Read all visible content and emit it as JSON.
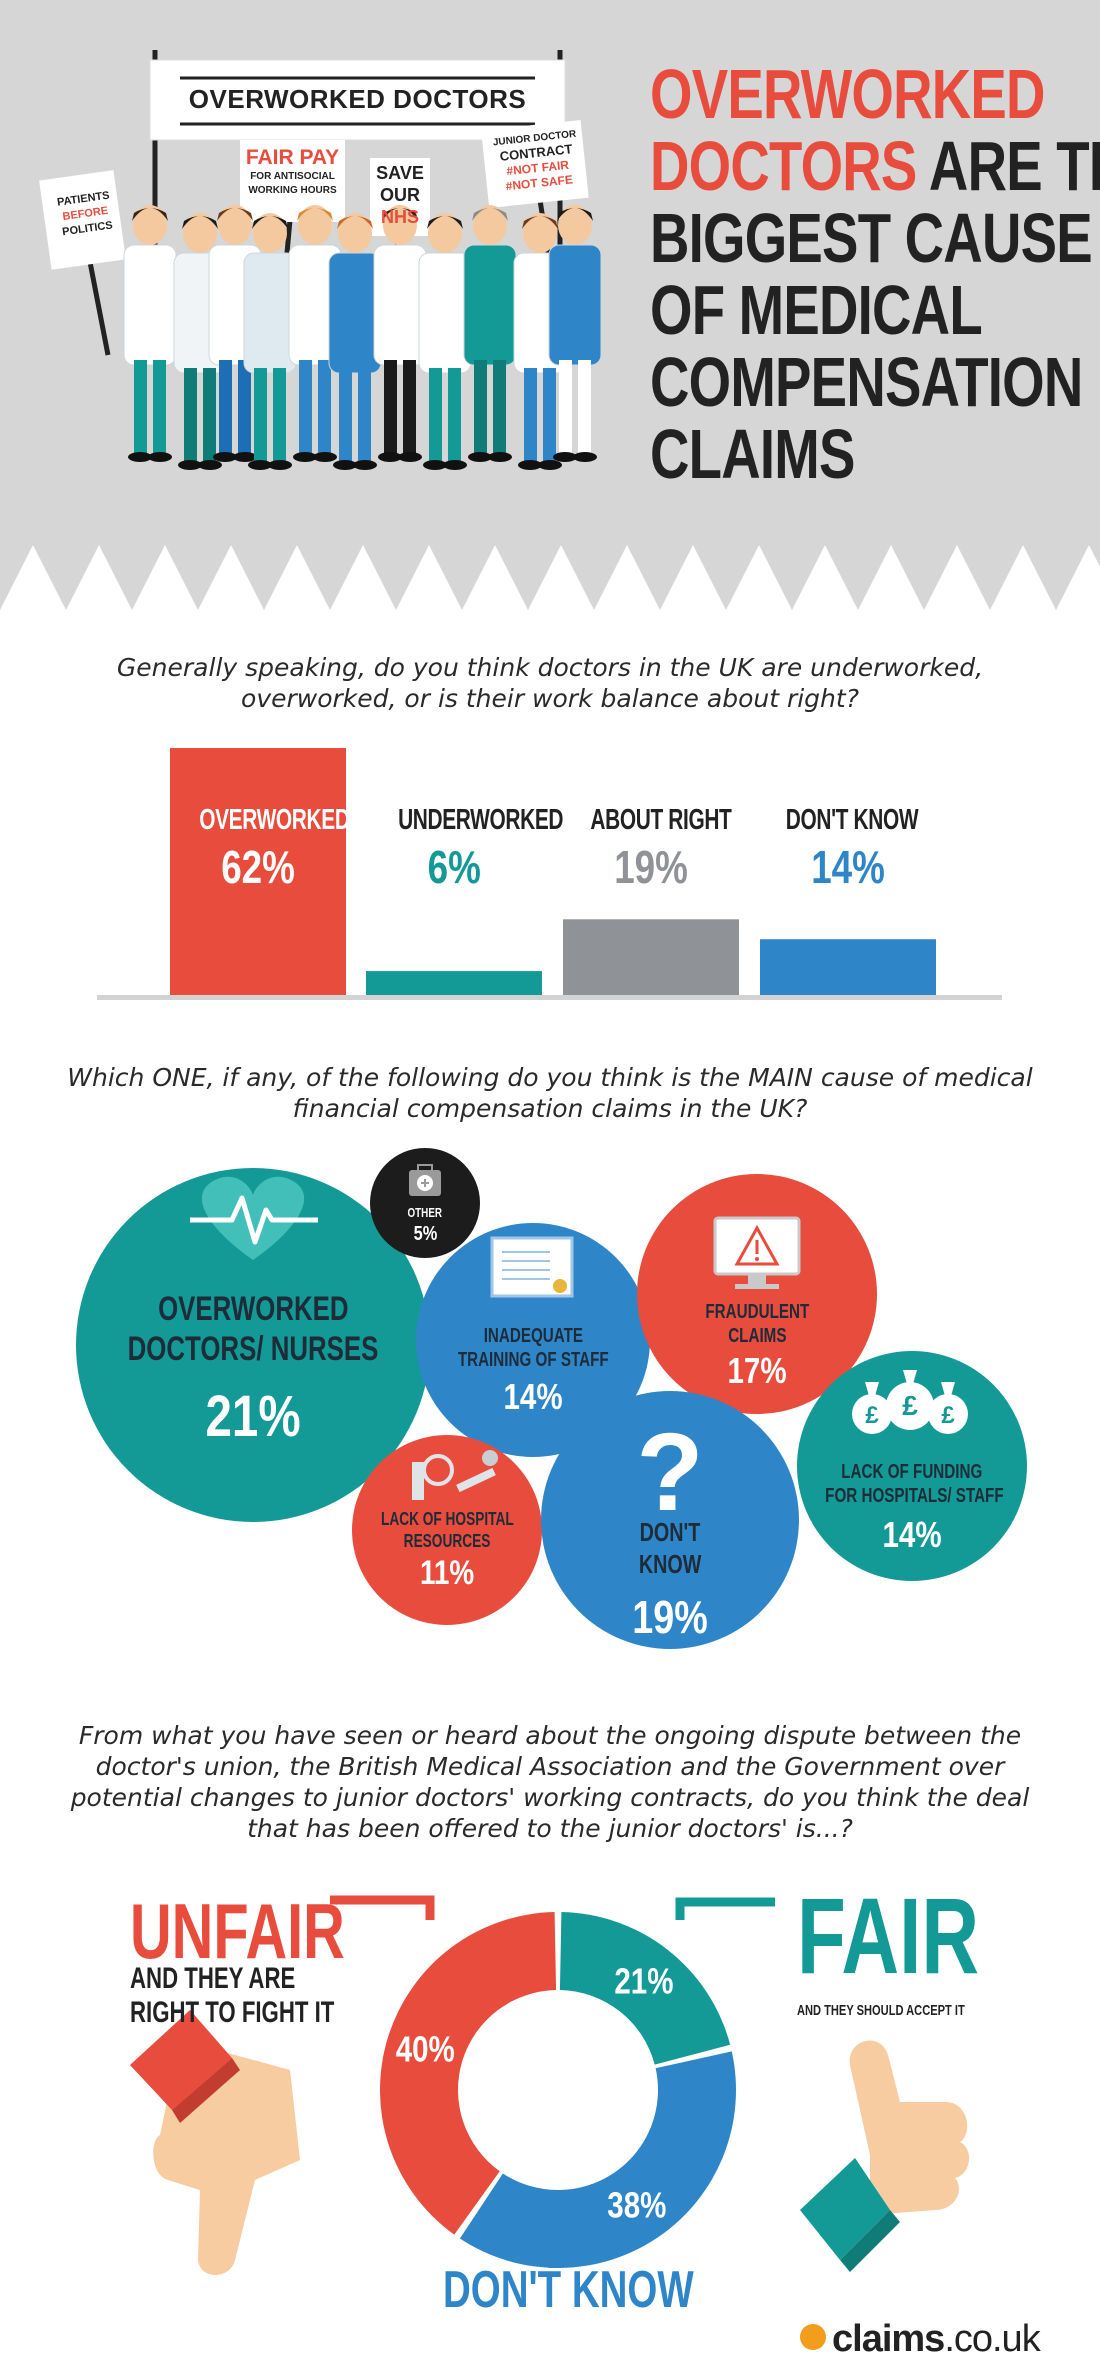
{
  "header": {
    "title_red_1": "OVERWORKED",
    "title_red_2": "DOCTORS",
    "title_rest_2": " ARE THE",
    "title_3": "BIGGEST CAUSE",
    "title_4": "OF MEDICAL",
    "title_5": "COMPENSATION",
    "title_6": "CLAIMS",
    "banner": "OVERWORKED DOCTORS",
    "sign_patients": [
      "PATIENTS",
      "BEFORE",
      "POLITICS"
    ],
    "sign_fairpay": [
      "FAIR PAY",
      "FOR ANTISOCIAL",
      "WORKING HOURS"
    ],
    "sign_save": [
      "SAVE",
      "OUR",
      "NHS"
    ],
    "sign_junior": [
      "JUNIOR DOCTOR",
      "CONTRACT",
      "#NOT FAIR",
      "#NOT SAFE"
    ]
  },
  "colors": {
    "red": "#e84c3d",
    "teal": "#139a96",
    "grey": "#8f9296",
    "blue": "#2e86c9",
    "bg_header": "#d6d6d6"
  },
  "chart_data": [
    {
      "type": "bar",
      "question": "Generally speaking, do you think doctors in the UK are underworked, overworked, or is their work balance about right?",
      "categories": [
        "OVERWORKED",
        "UNDERWORKED",
        "ABOUT RIGHT",
        "DON'T KNOW"
      ],
      "values": [
        62,
        6,
        19,
        14
      ],
      "value_labels": [
        "62%",
        "6%",
        "19%",
        "14%"
      ],
      "colors": [
        "#e84c3d",
        "#139a96",
        "#8f9296",
        "#2e86c9"
      ],
      "ylim": [
        0,
        62
      ]
    },
    {
      "type": "bubble",
      "question": "Which ONE, if any, of the following do you think is the MAIN cause of medical financial compensation claims in the UK?",
      "items": [
        {
          "label": [
            "OVERWORKED",
            "DOCTORS/ NURSES"
          ],
          "value": 21,
          "value_label": "21%",
          "color": "#139a96",
          "icon": "heart-pulse-icon"
        },
        {
          "label": [
            "OTHER"
          ],
          "value": 5,
          "value_label": "5%",
          "color": "#1c1c1c",
          "icon": "first-aid-kit-icon"
        },
        {
          "label": [
            "INADEQUATE",
            "TRAINING OF STAFF"
          ],
          "value": 14,
          "value_label": "14%",
          "color": "#2e86c9",
          "icon": "certificate-icon"
        },
        {
          "label": [
            "FRAUDULENT",
            "CLAIMS"
          ],
          "value": 17,
          "value_label": "17%",
          "color": "#e84c3d",
          "icon": "warning-monitor-icon"
        },
        {
          "label": [
            "LACK OF FUNDING",
            "FOR HOSPITALS/ STAFF"
          ],
          "value": 14,
          "value_label": "14%",
          "color": "#139a96",
          "icon": "money-bags-icon"
        },
        {
          "label": [
            "LACK OF HOSPITAL",
            "RESOURCES"
          ],
          "value": 11,
          "value_label": "11%",
          "color": "#e84c3d",
          "icon": "medical-tools-icon"
        },
        {
          "label": [
            "DON'T",
            "KNOW"
          ],
          "value": 19,
          "value_label": "19%",
          "color": "#2e86c9",
          "icon": "question-mark-icon"
        }
      ]
    },
    {
      "type": "pie",
      "question": "From what you have seen or heard about the ongoing dispute between the doctor's union, the British Medical Association and the Government over potential changes to junior doctors' working contracts, do you think the deal that has been offered to the junior doctors' is...?",
      "slices": [
        {
          "name": "FAIR",
          "value": 21,
          "value_label": "21%",
          "color": "#139a96"
        },
        {
          "name": "DON'T KNOW",
          "value": 38,
          "value_label": "38%",
          "color": "#2e86c9"
        },
        {
          "name": "UNFAIR",
          "value": 40,
          "value_label": "40%",
          "color": "#e84c3d"
        }
      ]
    }
  ],
  "donut_labels": {
    "unfair": "UNFAIR",
    "unfair_sub_1": "AND THEY ARE",
    "unfair_sub_2": "RIGHT TO FIGHT IT",
    "fair": "FAIR",
    "fair_sub": "AND THEY SHOULD ACCEPT IT",
    "dontknow": "DON'T KNOW"
  },
  "logo": {
    "main": "claims",
    "suffix": ".co.uk"
  }
}
